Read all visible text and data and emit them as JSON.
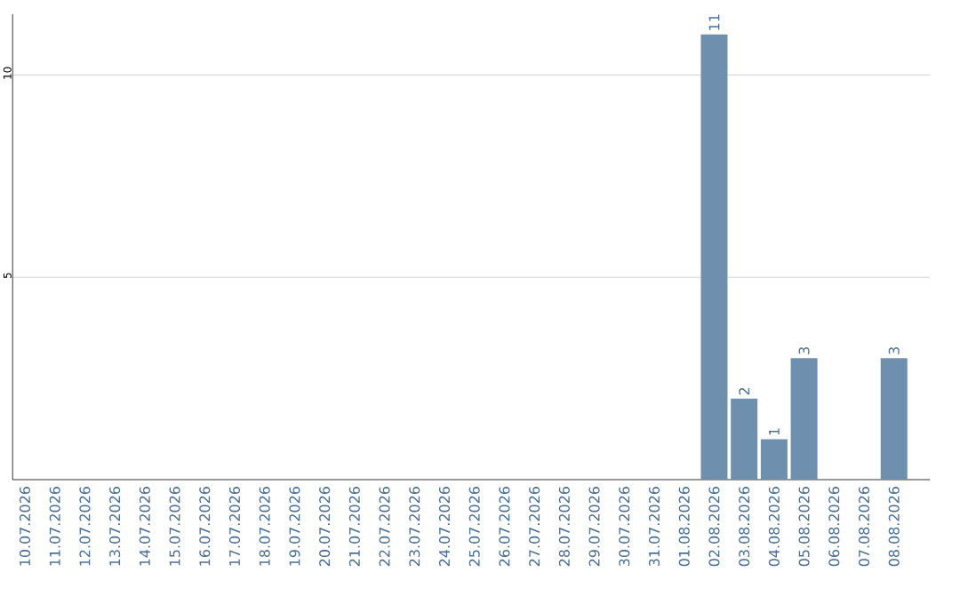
{
  "chart_data": {
    "type": "bar",
    "categories": [
      "10.07.2026",
      "11.07.2026",
      "12.07.2026",
      "13.07.2026",
      "14.07.2026",
      "15.07.2026",
      "16.07.2026",
      "17.07.2026",
      "18.07.2026",
      "19.07.2026",
      "20.07.2026",
      "21.07.2026",
      "22.07.2026",
      "23.07.2026",
      "24.07.2026",
      "25.07.2026",
      "26.07.2026",
      "27.07.2026",
      "28.07.2026",
      "29.07.2026",
      "30.07.2026",
      "31.07.2026",
      "01.08.2026",
      "02.08.2026",
      "03.08.2026",
      "04.08.2026",
      "05.08.2026",
      "06.08.2026",
      "07.08.2026",
      "08.08.2026"
    ],
    "values": [
      null,
      null,
      null,
      null,
      null,
      null,
      null,
      null,
      null,
      null,
      null,
      null,
      null,
      null,
      null,
      null,
      null,
      null,
      null,
      null,
      null,
      null,
      null,
      11,
      2,
      1,
      3,
      null,
      null,
      3
    ],
    "color": "#6f8fae",
    "ylim": [
      0,
      11.5
    ],
    "yticks": [
      5,
      10
    ],
    "grid": "y",
    "data_labels": true
  }
}
